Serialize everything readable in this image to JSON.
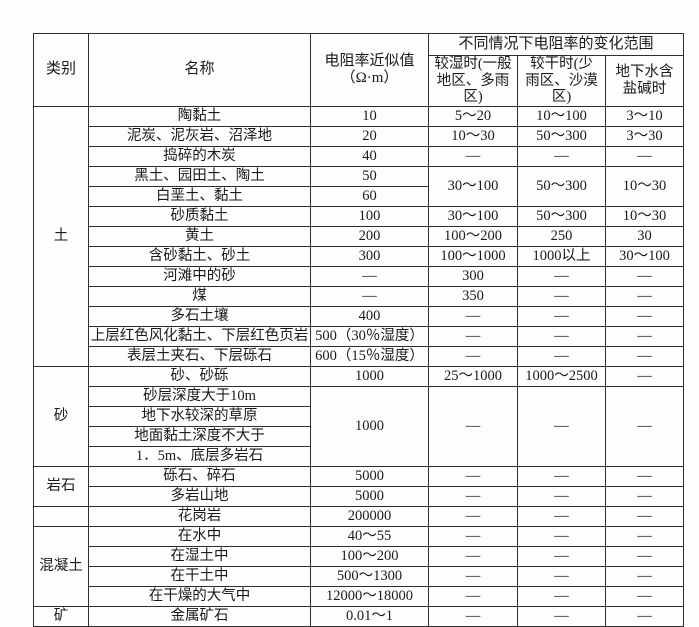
{
  "colors": {
    "border": "#2d2d2d",
    "text": "#1a1a1a",
    "background": "#fdfdfd"
  },
  "table": {
    "header": {
      "category": "类别",
      "name": "名称",
      "resistivity": "电阻率近似值\n（Ω·m）",
      "range_title": "不同情况下电阻率的变化范围",
      "wet": "较湿时(一般\n地区、多雨区)",
      "dry": "较干时(少\n雨区、沙漠区)",
      "saline": "地下水含\n盐碱时"
    },
    "rows": [
      {
        "category": {
          "label": "土",
          "rowspan": 13
        },
        "name": "陶黏土",
        "approx": "10",
        "wet": "5～20",
        "dry": "10～100",
        "saline": "3～10"
      },
      {
        "name": "泥炭、泥灰岩、沼泽地",
        "approx": "20",
        "wet": "10～30",
        "dry": "50～300",
        "saline": "3～30"
      },
      {
        "name": "捣碎的木炭",
        "approx": "40",
        "wet": "—",
        "dry": "—",
        "saline": "—"
      },
      {
        "name": "黑土、园田土、陶土",
        "approx": "50",
        "wet": {
          "label": "30～100",
          "rowspan": 2
        },
        "dry": {
          "label": "50～300",
          "rowspan": 2
        },
        "saline": {
          "label": "10～30",
          "rowspan": 2
        }
      },
      {
        "name": "白垩土、黏土",
        "approx": "60"
      },
      {
        "name": "砂质黏土",
        "approx": "100",
        "wet": "30～100",
        "dry": "50～300",
        "saline": "10～30"
      },
      {
        "name": "黄土",
        "approx": "200",
        "wet": "100～200",
        "dry": "250",
        "saline": "30"
      },
      {
        "name": "含砂黏土、砂土",
        "approx": "300",
        "wet": "100～1000",
        "dry": "1000以上",
        "saline": "30～100"
      },
      {
        "name": "河滩中的砂",
        "approx": "—",
        "wet": "300",
        "dry": "—",
        "saline": "—"
      },
      {
        "name": "煤",
        "approx": "—",
        "wet": "350",
        "dry": "—",
        "saline": "—"
      },
      {
        "name": "多石土壤",
        "approx": "400",
        "wet": "—",
        "dry": "—",
        "saline": "—"
      },
      {
        "name": "上层红色风化黏土、下层红色页岩",
        "approx": "500（30％湿度）",
        "wet": "—",
        "dry": "—",
        "saline": "—"
      },
      {
        "name": "表层土夹石、下层砾石",
        "approx": "600（15％湿度）",
        "wet": "—",
        "dry": "—",
        "saline": "—"
      },
      {
        "category": {
          "label": "砂",
          "rowspan": 5
        },
        "name": "砂、砂砾",
        "approx": "1000",
        "wet": "25～1000",
        "dry": "1000～2500",
        "saline": "—"
      },
      {
        "name": "砂层深度大于10m",
        "approx": {
          "label": "1000",
          "rowspan": 4
        },
        "wet": {
          "label": "—",
          "rowspan": 4
        },
        "dry": {
          "label": "—",
          "rowspan": 4
        },
        "saline": {
          "label": "—",
          "rowspan": 4
        }
      },
      {
        "name": "地下水较深的草原"
      },
      {
        "name": "地面黏土深度不大于"
      },
      {
        "name": "1．5m、底层多岩石"
      },
      {
        "category": {
          "label": "岩石",
          "rowspan": 2
        },
        "name": "砾石、碎石",
        "approx": "5000",
        "wet": "—",
        "dry": "—",
        "saline": "—"
      },
      {
        "name": "多岩山地",
        "approx": "5000",
        "wet": "—",
        "dry": "—",
        "saline": "—"
      },
      {
        "category": {
          "label": "",
          "rowspan": 1
        },
        "name": "花岗岩",
        "approx": "200000",
        "wet": "—",
        "dry": "—",
        "saline": "—"
      },
      {
        "category": {
          "label": "混凝土",
          "rowspan": 4
        },
        "name": "在水中",
        "approx": "40～55",
        "wet": "—",
        "dry": "—",
        "saline": "—"
      },
      {
        "name": "在湿土中",
        "approx": "100～200",
        "wet": "—",
        "dry": "—",
        "saline": "—"
      },
      {
        "name": "在干土中",
        "approx": "500～1300",
        "wet": "—",
        "dry": "—",
        "saline": "—"
      },
      {
        "name": "在干燥的大气中",
        "approx": "12000～18000",
        "wet": "—",
        "dry": "—",
        "saline": "—"
      },
      {
        "category": {
          "label": "矿",
          "rowspan": 1
        },
        "name": "金属矿石",
        "approx": "0.01～1",
        "wet": "—",
        "dry": "—",
        "saline": "—"
      }
    ]
  }
}
